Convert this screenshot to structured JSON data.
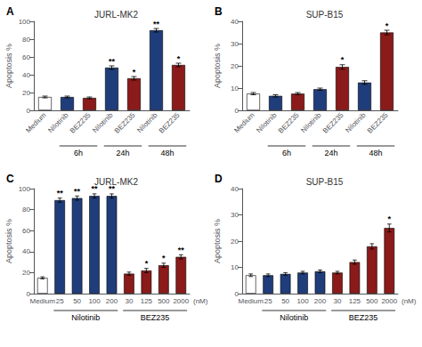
{
  "chart_data": [
    {
      "type": "bar",
      "panel_label": "A",
      "title": "JURL-MK2",
      "ylabel": "Apoptosis %",
      "categories": [
        "Medium",
        "Nilotinib",
        "BEZ235",
        "Nilotinib",
        "BEZ235",
        "Nilotinib",
        "BEZ235"
      ],
      "values": [
        15,
        15,
        14,
        48,
        36,
        90,
        51
      ],
      "errors": [
        1,
        1,
        1,
        2,
        2,
        2,
        2
      ],
      "colors": [
        "#ffffff",
        "#1f3d7a",
        "#8b1a1a",
        "#1f3d7a",
        "#8b1a1a",
        "#1f3d7a",
        "#8b1a1a"
      ],
      "annotations": [
        null,
        null,
        null,
        "**",
        "*",
        "**",
        "*"
      ],
      "groups": [
        null,
        "6h",
        "6h",
        "24h",
        "24h",
        "48h",
        "48h"
      ],
      "ylim": [
        0,
        100
      ],
      "yticks": [
        0,
        20,
        40,
        60,
        80,
        100
      ],
      "grid": false
    },
    {
      "type": "bar",
      "panel_label": "B",
      "title": "SUP-B15",
      "ylabel": "Apoptosis %",
      "categories": [
        "Medium",
        "Nilotinib",
        "BEZ235",
        "Nilotinib",
        "BEZ235",
        "Nilotinib",
        "BEZ235"
      ],
      "values": [
        7.5,
        6.5,
        7.5,
        9.5,
        19.5,
        12.5,
        35
      ],
      "errors": [
        0.5,
        0.5,
        0.5,
        0.5,
        1.0,
        0.8,
        1.0
      ],
      "colors": [
        "#ffffff",
        "#1f3d7a",
        "#8b1a1a",
        "#1f3d7a",
        "#8b1a1a",
        "#1f3d7a",
        "#8b1a1a"
      ],
      "annotations": [
        null,
        null,
        null,
        null,
        "*",
        null,
        "*"
      ],
      "groups": [
        null,
        "6h",
        "6h",
        "24h",
        "24h",
        "48h",
        "48h"
      ],
      "ylim": [
        0,
        40
      ],
      "yticks": [
        0,
        10,
        20,
        30,
        40
      ],
      "grid": false
    },
    {
      "type": "bar",
      "panel_label": "C",
      "title": "JURL-MK2",
      "ylabel": "Apoptosis %",
      "xlabel": "(nM)",
      "categories": [
        "Medium",
        "25",
        "50",
        "100",
        "200",
        "30",
        "125",
        "500",
        "2000"
      ],
      "values": [
        15,
        89,
        91,
        93,
        93,
        19,
        22,
        27,
        35
      ],
      "errors": [
        1,
        2,
        2,
        2,
        2,
        1.5,
        2,
        2,
        2
      ],
      "colors": [
        "#ffffff",
        "#1f3d7a",
        "#1f3d7a",
        "#1f3d7a",
        "#1f3d7a",
        "#8b1a1a",
        "#8b1a1a",
        "#8b1a1a",
        "#8b1a1a"
      ],
      "annotations": [
        null,
        "**",
        "**",
        "**",
        "**",
        null,
        "*",
        "*",
        "**"
      ],
      "groups": [
        null,
        "Nilotinib",
        "Nilotinib",
        "Nilotinib",
        "Nilotinib",
        "BEZ235",
        "BEZ235",
        "BEZ235",
        "BEZ235"
      ],
      "ylim": [
        0,
        100
      ],
      "yticks": [
        0,
        20,
        40,
        60,
        80,
        100
      ],
      "grid": false
    },
    {
      "type": "bar",
      "panel_label": "D",
      "title": "SUP-B15",
      "ylabel": "Apoptosis %",
      "xlabel": "(nM)",
      "categories": [
        "Medium",
        "25",
        "50",
        "100",
        "200",
        "30",
        "125",
        "500",
        "2000"
      ],
      "values": [
        7,
        7,
        7.5,
        8,
        8.5,
        8,
        12,
        18,
        25
      ],
      "errors": [
        0.5,
        0.5,
        0.5,
        0.5,
        0.5,
        0.5,
        0.8,
        1.0,
        1.5
      ],
      "colors": [
        "#ffffff",
        "#1f3d7a",
        "#1f3d7a",
        "#1f3d7a",
        "#1f3d7a",
        "#8b1a1a",
        "#8b1a1a",
        "#8b1a1a",
        "#8b1a1a"
      ],
      "annotations": [
        null,
        null,
        null,
        null,
        null,
        null,
        null,
        null,
        "*"
      ],
      "groups": [
        null,
        "Nilotinib",
        "Nilotinib",
        "Nilotinib",
        "Nilotinib",
        "BEZ235",
        "BEZ235",
        "BEZ235",
        "BEZ235"
      ],
      "ylim": [
        0,
        40
      ],
      "yticks": [
        0,
        10,
        20,
        30,
        40
      ],
      "grid": false
    }
  ]
}
